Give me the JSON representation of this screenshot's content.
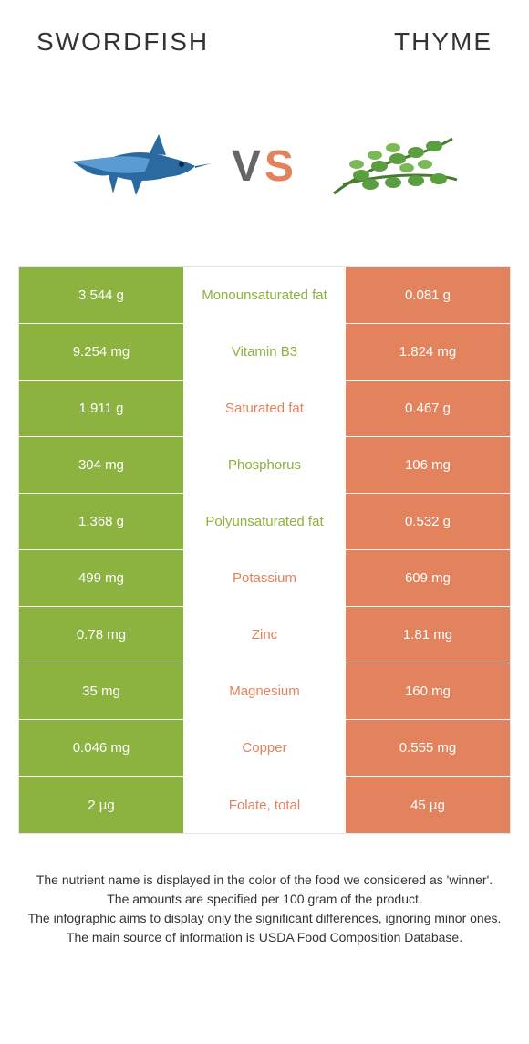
{
  "title_left": "SWORDFISH",
  "title_right": "THYME",
  "vs": {
    "v": "V",
    "s": "S"
  },
  "colors": {
    "left": "#8cb23f",
    "right": "#e2835e",
    "mid_left_text": "#8cb23f",
    "mid_right_text": "#e2835e",
    "row_border": "#ffffff",
    "table_border": "#e5e5e5",
    "bg": "#ffffff"
  },
  "left_icon_label": "swordfish-illustration",
  "right_icon_label": "thyme-illustration",
  "rows": [
    {
      "left": "3.544 g",
      "mid": "Monounsaturated fat",
      "right": "0.081 g",
      "winner": "left"
    },
    {
      "left": "9.254 mg",
      "mid": "Vitamin B3",
      "right": "1.824 mg",
      "winner": "left"
    },
    {
      "left": "1.911 g",
      "mid": "Saturated fat",
      "right": "0.467 g",
      "winner": "right"
    },
    {
      "left": "304 mg",
      "mid": "Phosphorus",
      "right": "106 mg",
      "winner": "left"
    },
    {
      "left": "1.368 g",
      "mid": "Polyunsaturated fat",
      "right": "0.532 g",
      "winner": "left"
    },
    {
      "left": "499 mg",
      "mid": "Potassium",
      "right": "609 mg",
      "winner": "right"
    },
    {
      "left": "0.78 mg",
      "mid": "Zinc",
      "right": "1.81 mg",
      "winner": "right"
    },
    {
      "left": "35 mg",
      "mid": "Magnesium",
      "right": "160 mg",
      "winner": "right"
    },
    {
      "left": "0.046 mg",
      "mid": "Copper",
      "right": "0.555 mg",
      "winner": "right"
    },
    {
      "left": "2 µg",
      "mid": "Folate, total",
      "right": "45 µg",
      "winner": "right"
    }
  ],
  "footer": [
    "The nutrient name is displayed in the color of the food we considered as 'winner'.",
    "The amounts are specified per 100 gram of the product.",
    "The infographic aims to display only the significant differences, ignoring minor ones.",
    "The main source of information is USDA Food Composition Database."
  ]
}
